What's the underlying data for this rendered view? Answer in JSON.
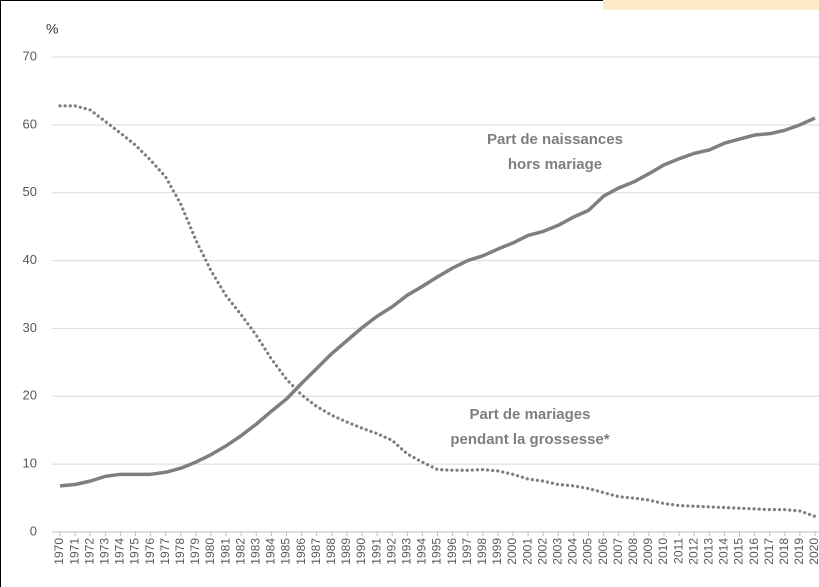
{
  "chart_data": {
    "type": "line",
    "y_axis_label": "%",
    "x": [
      1970,
      1971,
      1972,
      1973,
      1974,
      1975,
      1976,
      1977,
      1978,
      1979,
      1980,
      1981,
      1982,
      1983,
      1984,
      1985,
      1986,
      1987,
      1988,
      1989,
      1990,
      1991,
      1992,
      1993,
      1994,
      1995,
      1996,
      1997,
      1998,
      1999,
      2000,
      2001,
      2002,
      2003,
      2004,
      2005,
      2006,
      2007,
      2008,
      2009,
      2010,
      2011,
      2012,
      2013,
      2014,
      2015,
      2016,
      2017,
      2018,
      2019,
      2020
    ],
    "xlim": [
      1970,
      2020
    ],
    "ylim": [
      0,
      70
    ],
    "yticks": [
      0,
      10,
      20,
      30,
      40,
      50,
      60,
      70
    ],
    "grid": true,
    "series": [
      {
        "name": "Part de naissances hors mariage",
        "color": "#7f7f7f",
        "style": "solid",
        "label_lines": [
          "Part de naissances",
          "hors mariage"
        ],
        "values": [
          6.8,
          7.0,
          7.5,
          8.2,
          8.5,
          8.5,
          8.5,
          8.8,
          9.4,
          10.3,
          11.4,
          12.7,
          14.2,
          15.9,
          17.8,
          19.6,
          21.9,
          24.1,
          26.3,
          28.2,
          30.1,
          31.8,
          33.2,
          34.9,
          36.2,
          37.6,
          38.9,
          40.0,
          40.7,
          41.7,
          42.6,
          43.7,
          44.3,
          45.2,
          46.4,
          47.4,
          49.5,
          50.7,
          51.6,
          52.8,
          54.1,
          55.0,
          55.8,
          56.3,
          57.3,
          57.9,
          58.5,
          58.7,
          59.2,
          60.0,
          61.0
        ]
      },
      {
        "name": "Part de mariages pendant la grossesse*",
        "color": "#7f7f7f",
        "style": "dotted",
        "label_lines": [
          "Part de mariages",
          "pendant la grossesse*"
        ],
        "values": [
          62.8,
          62.8,
          62.2,
          60.5,
          58.8,
          57.0,
          54.8,
          52.3,
          48.3,
          43.0,
          38.5,
          34.8,
          32.0,
          29.0,
          25.5,
          22.5,
          20.2,
          18.5,
          17.2,
          16.2,
          15.3,
          14.5,
          13.5,
          11.5,
          10.3,
          9.2,
          9.1,
          9.1,
          9.2,
          9.0,
          8.5,
          7.8,
          7.5,
          7.0,
          6.8,
          6.4,
          5.8,
          5.2,
          5.0,
          4.7,
          4.2,
          3.9,
          3.8,
          3.7,
          3.6,
          3.5,
          3.4,
          3.3,
          3.3,
          3.1,
          2.3
        ]
      }
    ]
  }
}
